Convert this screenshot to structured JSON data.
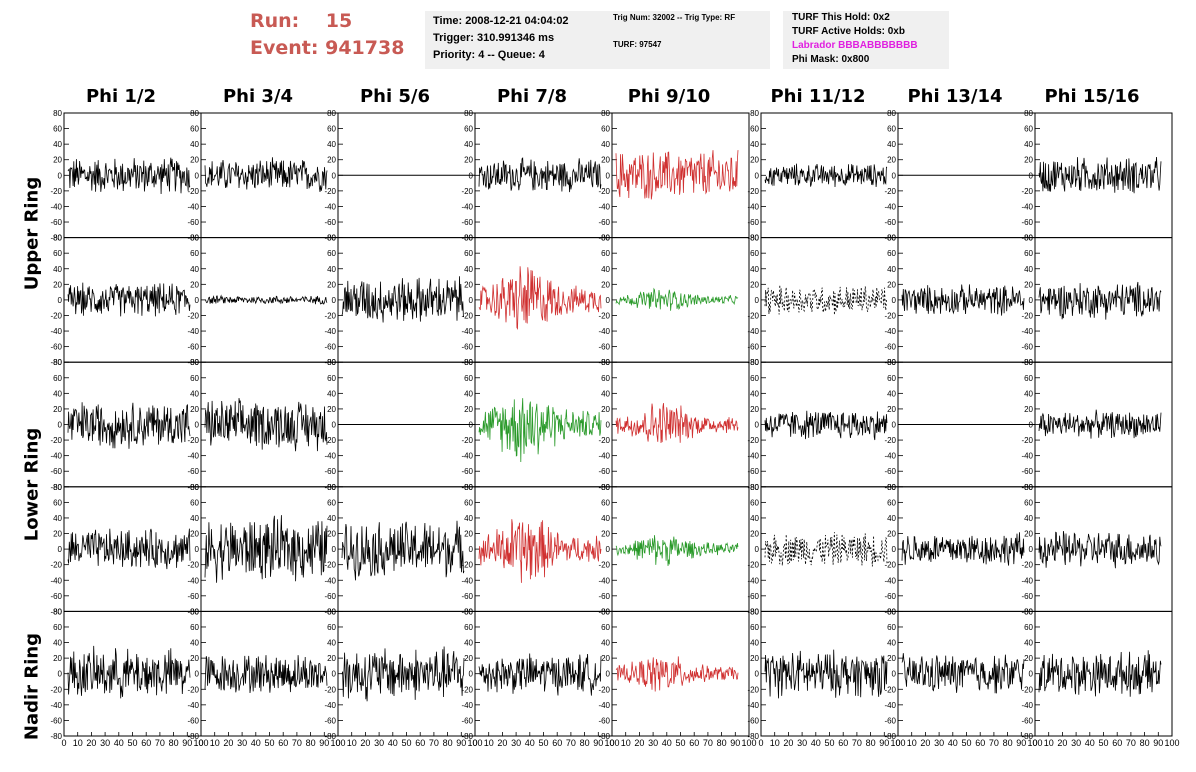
{
  "header": {
    "run_label": "Run:",
    "run_value": "15",
    "event_label": "Event:",
    "event_value": "941738"
  },
  "info_panel": {
    "time": "Time: 2008-12-21 04:04:02",
    "trigger": "Trigger: 310.991346 ms",
    "priority": "Priority: 4 -- Queue: 4"
  },
  "trig_panel": {
    "trig": "Trig Num: 32002 -- Trig Type: RF",
    "turf": "TURF: 97547"
  },
  "turf_panel": {
    "this_hold": "TURF This Hold: 0x2",
    "active_holds": "TURF Active Holds: 0xb",
    "labrador": "Labrador BBBABBBBBBB",
    "phi_mask": "Phi Mask: 0x800"
  },
  "colors": {
    "header_red": "#c85a54",
    "trace_black": "#000000",
    "trace_red": "#d03030",
    "trace_green": "#2a9a2a",
    "labrador_magenta": "#e020e0",
    "panel_bg": "#f0f0f0"
  },
  "chart_data": {
    "type": "line",
    "columns": [
      "Phi 1/2",
      "Phi 3/4",
      "Phi 5/6",
      "Phi 7/8",
      "Phi 9/10",
      "Phi 11/12",
      "Phi 13/14",
      "Phi 15/16"
    ],
    "row_labels": [
      {
        "label": "Upper Ring",
        "rows": [
          0,
          1
        ]
      },
      {
        "label": "Lower Ring",
        "rows": [
          2,
          3
        ]
      },
      {
        "label": "Nadir Ring",
        "rows": [
          4
        ]
      }
    ],
    "ylim": [
      -80,
      80
    ],
    "y_ticks": [
      80,
      60,
      40,
      20,
      0,
      -20,
      -40,
      -60,
      -80
    ],
    "xlim": [
      0,
      100
    ],
    "x_ticks": [
      0,
      10,
      20,
      30,
      40,
      50,
      60,
      70,
      80,
      90,
      100
    ],
    "panels": [
      [
        {
          "style": "noise",
          "color": "black",
          "amp": 22
        },
        {
          "style": "noise",
          "color": "black",
          "amp": 20
        },
        {
          "style": "flat",
          "color": "black",
          "amp": 0
        },
        {
          "style": "noise",
          "color": "black",
          "amp": 20
        },
        {
          "style": "noise",
          "color": "red",
          "amp": 30
        },
        {
          "style": "noise",
          "color": "black",
          "amp": 14
        },
        {
          "style": "flat",
          "color": "black",
          "amp": 0
        },
        {
          "style": "noise",
          "color": "black",
          "amp": 22
        }
      ],
      [
        {
          "style": "noise",
          "color": "black",
          "amp": 20
        },
        {
          "style": "noise",
          "color": "black",
          "amp": 5
        },
        {
          "style": "noise",
          "color": "black",
          "amp": 28
        },
        {
          "style": "pulse",
          "color": "red",
          "amp": 45
        },
        {
          "style": "pulse",
          "color": "green",
          "amp": 15
        },
        {
          "style": "dashed",
          "color": "black",
          "amp": 18
        },
        {
          "style": "noise",
          "color": "black",
          "amp": 18
        },
        {
          "style": "noise",
          "color": "black",
          "amp": 22
        }
      ],
      [
        {
          "style": "noise",
          "color": "black",
          "amp": 28
        },
        {
          "style": "noise",
          "color": "black",
          "amp": 30
        },
        {
          "style": "flat",
          "color": "black",
          "amp": 0
        },
        {
          "style": "pulse",
          "color": "green",
          "amp": 48
        },
        {
          "style": "pulse",
          "color": "red",
          "amp": 30
        },
        {
          "style": "noise",
          "color": "black",
          "amp": 18
        },
        {
          "style": "flat",
          "color": "black",
          "amp": 0
        },
        {
          "style": "noise",
          "color": "black",
          "amp": 16
        }
      ],
      [
        {
          "style": "noise",
          "color": "black",
          "amp": 24
        },
        {
          "style": "noise",
          "color": "black",
          "amp": 38
        },
        {
          "style": "noise",
          "color": "black",
          "amp": 34
        },
        {
          "style": "pulse",
          "color": "red",
          "amp": 45
        },
        {
          "style": "pulse",
          "color": "green",
          "amp": 20
        },
        {
          "style": "dashed",
          "color": "black",
          "amp": 20
        },
        {
          "style": "noise",
          "color": "black",
          "amp": 20
        },
        {
          "style": "noise",
          "color": "black",
          "amp": 22
        }
      ],
      [
        {
          "style": "noise",
          "color": "black",
          "amp": 30
        },
        {
          "style": "noise",
          "color": "black",
          "amp": 24
        },
        {
          "style": "noise",
          "color": "black",
          "amp": 32
        },
        {
          "style": "noise",
          "color": "black",
          "amp": 24
        },
        {
          "style": "pulse",
          "color": "red",
          "amp": 25
        },
        {
          "style": "noise",
          "color": "black",
          "amp": 28
        },
        {
          "style": "noise",
          "color": "black",
          "amp": 24
        },
        {
          "style": "noise",
          "color": "black",
          "amp": 26
        }
      ]
    ]
  }
}
